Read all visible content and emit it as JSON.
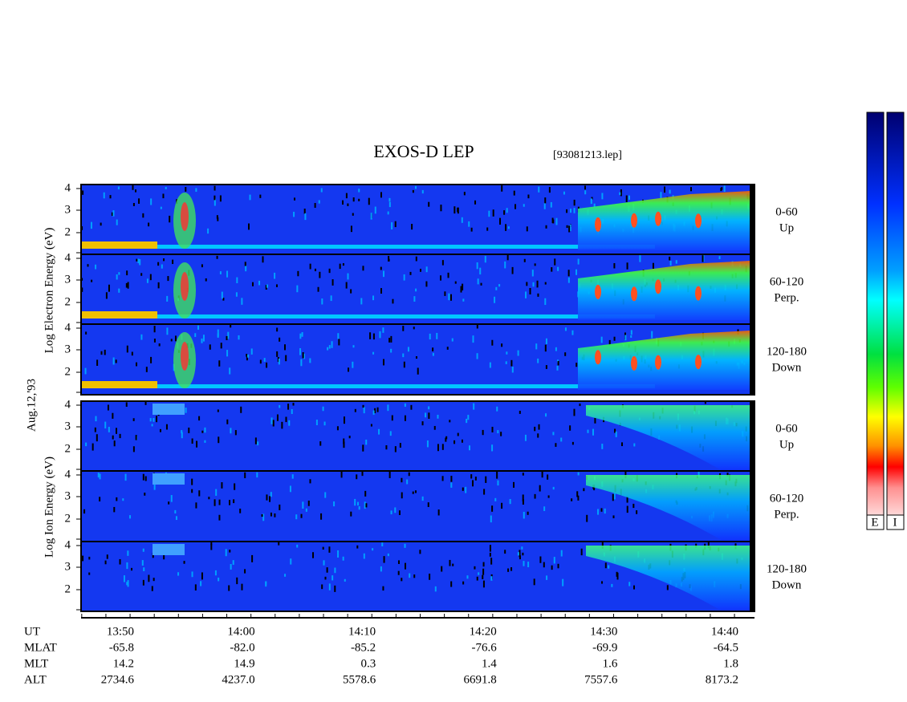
{
  "title": "EXOS-D LEP",
  "file": "[93081213.lep]",
  "date": "Aug.12,'93",
  "electron_label": "Log Electron Energy (eV)",
  "ion_label": "Log Ion Energy (eV)",
  "energy_ticks": [
    "4",
    "3",
    "2"
  ],
  "panels": [
    {
      "range": "0-60",
      "direction": "Up"
    },
    {
      "range": "60-120",
      "direction": "Perp."
    },
    {
      "range": "120-180",
      "direction": "Down"
    },
    {
      "range": "0-60",
      "direction": "Up"
    },
    {
      "range": "60-120",
      "direction": "Perp."
    },
    {
      "range": "120-180",
      "direction": "Down"
    }
  ],
  "time_rows": [
    {
      "label": "UT",
      "values": [
        "13:50",
        "14:00",
        "14:10",
        "14:20",
        "14:30",
        "14:40"
      ]
    },
    {
      "label": "MLAT",
      "values": [
        "-65.8",
        "-82.0",
        "-85.2",
        "-76.6",
        "-69.9",
        "-64.5"
      ]
    },
    {
      "label": "MLT",
      "values": [
        "14.2",
        "14.9",
        "0.3",
        "1.4",
        "1.6",
        "1.8"
      ]
    },
    {
      "label": "ALT",
      "values": [
        "2734.6",
        "4237.0",
        "5578.6",
        "6691.8",
        "7557.6",
        "8173.2"
      ]
    }
  ],
  "colorbar_labels": [
    "E",
    "I"
  ]
}
